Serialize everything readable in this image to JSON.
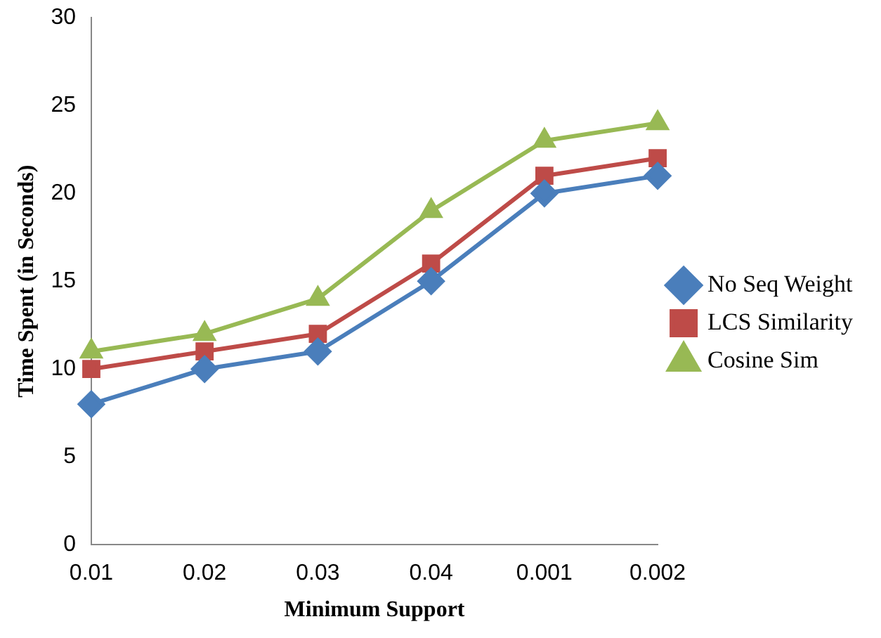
{
  "chart_data": {
    "type": "line",
    "xlabel": "Minimum Support",
    "ylabel": "Time Spent (in Seconds)",
    "categories": [
      "0.01",
      "0.02",
      "0.03",
      "0.04",
      "0.001",
      "0.002"
    ],
    "ylim": [
      0,
      30
    ],
    "yticks": [
      0,
      5,
      10,
      15,
      20,
      25,
      30
    ],
    "grid": false,
    "legend": "right",
    "line_style": "solid",
    "series": [
      {
        "name": "No Seq Weight",
        "color": "#4a7ebb",
        "marker": "diamond",
        "values": [
          8,
          10,
          11,
          15,
          20,
          21
        ]
      },
      {
        "name": "LCS Similarity",
        "color": "#be4b48",
        "marker": "square",
        "values": [
          10,
          11,
          12,
          16,
          21,
          22
        ]
      },
      {
        "name": "Cosine Sim",
        "color": "#98b954",
        "marker": "triangle",
        "values": [
          11,
          12,
          14,
          19,
          23,
          24
        ]
      }
    ]
  }
}
